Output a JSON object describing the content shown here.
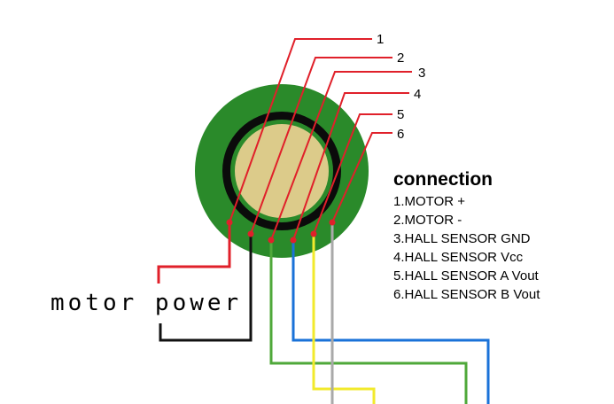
{
  "pin_labels": [
    "1",
    "2",
    "3",
    "4",
    "5",
    "6"
  ],
  "motor_power_label": "motor power",
  "legend": {
    "title": "connection",
    "items": [
      "1.MOTOR +",
      "2.MOTOR -",
      "3.HALL SENSOR GND",
      "4.HALL SENSOR Vcc",
      "5.HALL SENSOR A Vout",
      "6.HALL SENSOR B Vout"
    ]
  },
  "colors": {
    "pcb_green": "#2a8a2a",
    "ring_black": "#0b0b0b",
    "core_tan": "#dccb8a",
    "leader_red": "#e0202a",
    "wire_red": "#e0202a",
    "wire_black": "#111111",
    "wire_green": "#4fa83a",
    "wire_blue": "#1a72d8",
    "wire_yellow": "#f2ea2c",
    "wire_gray": "#a9a9a9"
  }
}
